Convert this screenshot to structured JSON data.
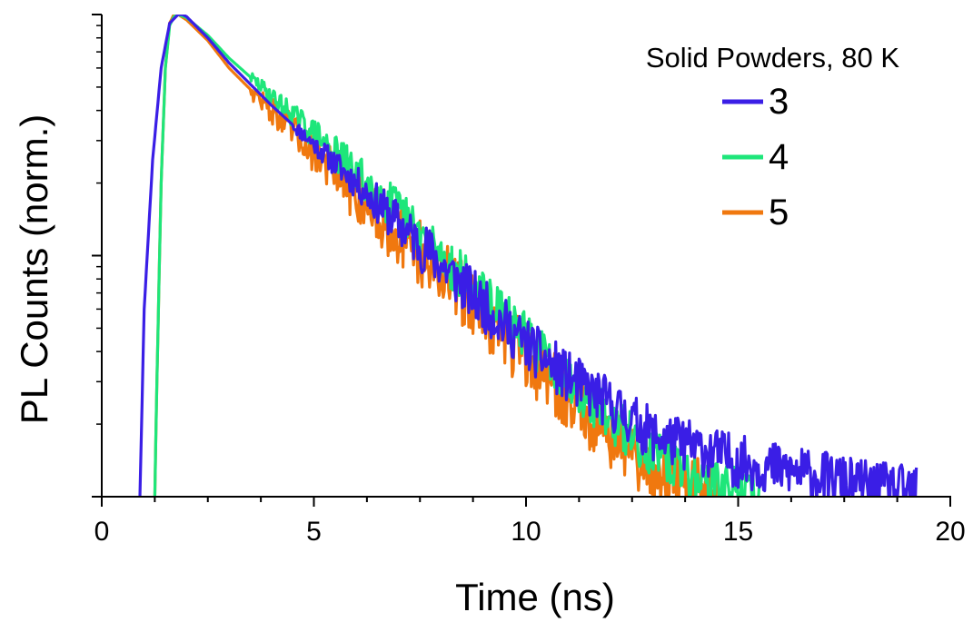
{
  "chart_data": {
    "type": "line",
    "title": "",
    "xlabel": "Time (ns)",
    "ylabel": "PL Counts (norm.)",
    "xlim": [
      0,
      20
    ],
    "xticks": [
      0,
      5,
      10,
      15,
      20
    ],
    "x_minor_step": 1.25,
    "yscale": "log",
    "ylim": [
      0.01,
      1
    ],
    "y_major_ticks": [
      0.01,
      0.1,
      1
    ],
    "yticklabels_shown": false,
    "grid": false,
    "legend": {
      "title": "Solid Powders, 80 K",
      "position": "top-right"
    },
    "series": [
      {
        "name": "3",
        "color": "#3a1ee6",
        "x": [
          0.9,
          1.0,
          1.2,
          1.4,
          1.6,
          1.8,
          1.9,
          2.0,
          2.5,
          3.0,
          4.0,
          5.0,
          6.0,
          7.0,
          8.0,
          9.0,
          10.0,
          11.0,
          12.0,
          13.0,
          14.0,
          15.0,
          16.0,
          17.0,
          18.0,
          19.0
        ],
        "y": [
          0.01,
          0.06,
          0.25,
          0.6,
          0.92,
          1.0,
          1.0,
          0.98,
          0.8,
          0.63,
          0.42,
          0.29,
          0.2,
          0.135,
          0.092,
          0.062,
          0.043,
          0.031,
          0.024,
          0.018,
          0.016,
          0.014,
          0.013,
          0.012,
          0.011,
          0.0105
        ],
        "noise": 0.22,
        "noise_start": 4.5,
        "x_end": 19.2
      },
      {
        "name": "4",
        "color": "#1ee67a",
        "x": [
          1.25,
          1.3,
          1.4,
          1.5,
          1.6,
          1.7,
          1.8,
          2.0,
          2.5,
          3.0,
          4.0,
          5.0,
          6.0,
          7.0,
          8.0,
          9.0,
          10.0,
          11.0,
          12.0,
          13.0,
          14.0,
          15.0,
          15.5
        ],
        "y": [
          0.01,
          0.03,
          0.2,
          0.6,
          0.9,
          0.98,
          1.0,
          0.97,
          0.82,
          0.66,
          0.46,
          0.32,
          0.22,
          0.152,
          0.1,
          0.068,
          0.046,
          0.031,
          0.021,
          0.015,
          0.012,
          0.0105,
          0.01
        ],
        "noise": 0.2,
        "noise_start": 3.5,
        "x_end": 15.5
      },
      {
        "name": "5",
        "color": "#f0780f",
        "x": [
          1.25,
          1.3,
          1.4,
          1.5,
          1.6,
          1.7,
          1.8,
          2.0,
          2.5,
          3.0,
          4.0,
          5.0,
          6.0,
          7.0,
          8.0,
          9.0,
          10.0,
          11.0,
          12.0,
          13.0,
          14.0,
          14.5
        ],
        "y": [
          0.01,
          0.03,
          0.2,
          0.6,
          0.92,
          1.0,
          1.0,
          0.95,
          0.78,
          0.6,
          0.4,
          0.27,
          0.18,
          0.125,
          0.085,
          0.057,
          0.038,
          0.026,
          0.018,
          0.013,
          0.0108,
          0.01
        ],
        "noise": 0.28,
        "noise_start": 3.5,
        "x_end": 14.5
      }
    ]
  }
}
